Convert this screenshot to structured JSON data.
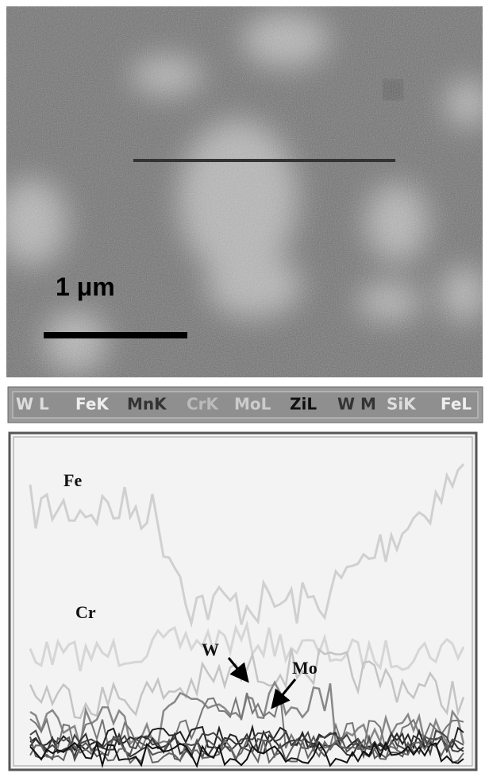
{
  "scale_label": "1 μm",
  "tabs": [
    "W L",
    "FeK",
    "MnK",
    "CrK",
    "MoL",
    "ZiL",
    "W M",
    "SiK",
    "FeL"
  ],
  "trace_labels": {
    "fe": "Fe",
    "cr": "Cr",
    "w": "W",
    "mo": "Mo"
  }
}
